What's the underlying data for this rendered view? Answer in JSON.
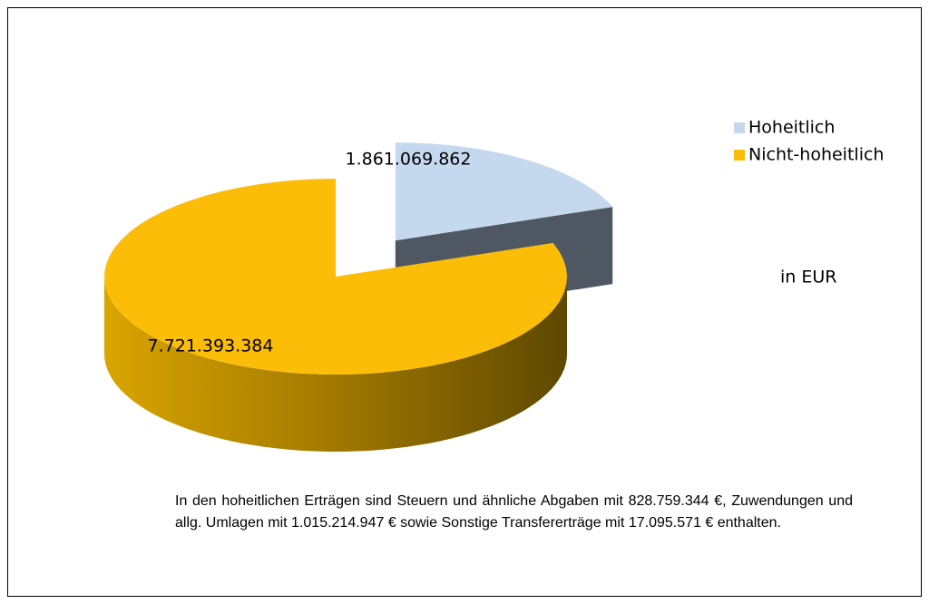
{
  "chart_data": {
    "type": "pie",
    "categories": [
      "Hoheitlich",
      "Nicht-hoheitlich"
    ],
    "values": [
      1861069862,
      7721393384
    ],
    "value_labels": [
      "1.861.069.862",
      "7.721.393.384"
    ],
    "colors": [
      "#c5d9ee",
      "#fbbd08"
    ],
    "legend": "right",
    "unit_label": "in EUR",
    "note": "In den hoheitlichen Erträgen sind Steuern und ähnliche Abgaben mit 828.759.344 €, Zuwendungen und allg. Umlagen mit 1.015.214.947 € sowie Sonstige Transfererträge mit 17.095.571 € enthalten."
  }
}
